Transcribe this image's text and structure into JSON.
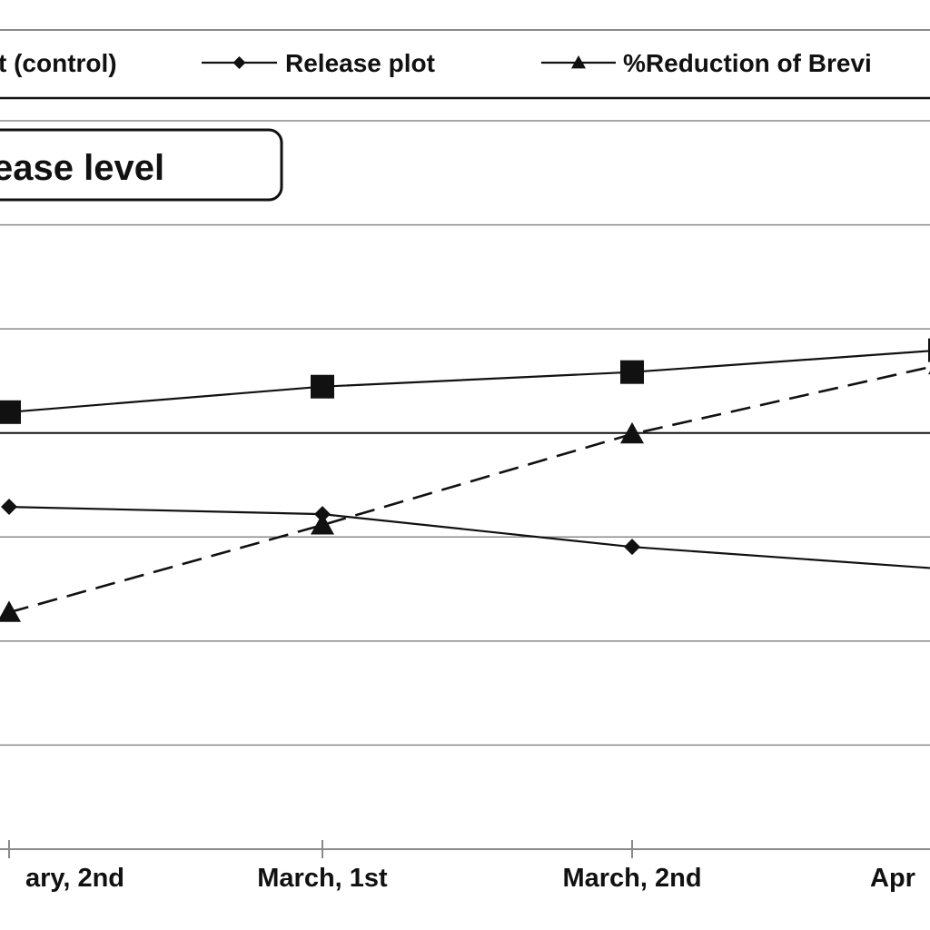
{
  "chart_data": {
    "type": "line",
    "badge": "ease level",
    "categories": [
      "ary, 2nd",
      "March, 1st",
      "March, 2nd",
      "Apr"
    ],
    "ylim": [
      0,
      100
    ],
    "grid": true,
    "legend_position": "top",
    "series": [
      {
        "name": "t (control)",
        "marker": "square",
        "dash": "solid",
        "values": [
          60,
          63.5,
          65.5,
          68.5
        ]
      },
      {
        "name": "Release plot",
        "marker": "diamond",
        "dash": "solid",
        "values": [
          47,
          46,
          41.5,
          38.5
        ]
      },
      {
        "name": "%Reduction of Brevi",
        "marker": "triangle",
        "dash": "dashed",
        "values": [
          32.5,
          44.5,
          57,
          66.5
        ]
      }
    ]
  },
  "colors": {
    "ink": "#111111",
    "grid": "#8a8a8a",
    "background": "#ffffff"
  }
}
